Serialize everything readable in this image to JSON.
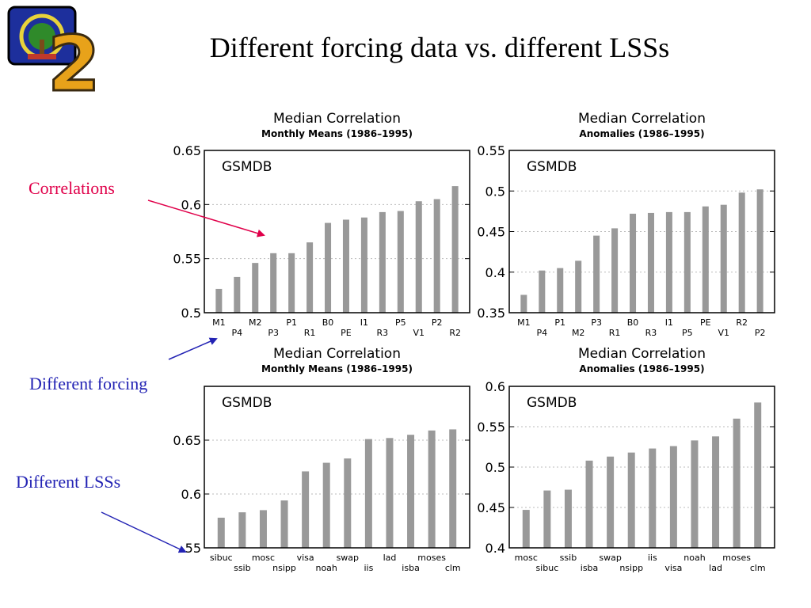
{
  "slide": {
    "title": "Different forcing data vs. different LSSs",
    "annotations": [
      {
        "key": "correlations",
        "text": "Correlations",
        "color": "#e0004a"
      },
      {
        "key": "forcing",
        "text": "Different forcing",
        "color": "#2323b4"
      },
      {
        "key": "lsss",
        "text": "Different LSSs",
        "color": "#2323b4"
      }
    ]
  },
  "logo": {
    "icon": "gswp2-logo-icon",
    "digit": "2"
  },
  "colors": {
    "bar": "#999999",
    "axis": "#000000",
    "grid": "#bbbbbb"
  },
  "chart_data": [
    {
      "type": "bar",
      "title": "Median Correlation",
      "subtitle": "Monthly Means (1986–1995)",
      "label": "GSMDB",
      "categories": [
        "M1",
        "P4",
        "M2",
        "P3",
        "P1",
        "R1",
        "B0",
        "PE",
        "I1",
        "R3",
        "P5",
        "V1",
        "P2",
        "R2"
      ],
      "values": [
        0.522,
        0.533,
        0.546,
        0.555,
        0.555,
        0.565,
        0.583,
        0.586,
        0.588,
        0.593,
        0.594,
        0.603,
        0.605,
        0.617
      ],
      "ylim": [
        0.5,
        0.65
      ],
      "yticks": [
        "0.5",
        "0.55",
        "0.6",
        "0.65"
      ],
      "grid": true
    },
    {
      "type": "bar",
      "title": "Median Correlation",
      "subtitle": "Anomalies (1986–1995)",
      "label": "GSMDB",
      "categories": [
        "M1",
        "P4",
        "P1",
        "M2",
        "P3",
        "R1",
        "B0",
        "R3",
        "I1",
        "P5",
        "PE",
        "V1",
        "R2",
        "P2"
      ],
      "values": [
        0.372,
        0.402,
        0.405,
        0.414,
        0.445,
        0.454,
        0.472,
        0.473,
        0.474,
        0.474,
        0.481,
        0.483,
        0.498,
        0.502
      ],
      "ylim": [
        0.35,
        0.55
      ],
      "yticks": [
        "0.35",
        "0.4",
        "0.45",
        "0.5",
        "0.55"
      ],
      "grid": true
    },
    {
      "type": "bar",
      "title": "Median Correlation",
      "subtitle": "Monthly Means (1986–1995)",
      "label": "GSMDB",
      "categories": [
        "sibuc",
        "ssib",
        "mosc",
        "nsipp",
        "visa",
        "noah",
        "swap",
        "iis",
        "lad",
        "isba",
        "moses",
        "clm"
      ],
      "values": [
        0.578,
        0.583,
        0.585,
        0.594,
        0.621,
        0.629,
        0.633,
        0.651,
        0.652,
        0.655,
        0.659,
        0.66
      ],
      "ylim": [
        0.55,
        0.7
      ],
      "yticks": [
        ".55",
        "0.6",
        "0.65"
      ],
      "grid": true
    },
    {
      "type": "bar",
      "title": "Median Correlation",
      "subtitle": "Anomalies (1986–1995)",
      "label": "GSMDB",
      "categories": [
        "mosc",
        "sibuc",
        "ssib",
        "isba",
        "swap",
        "nsipp",
        "iis",
        "visa",
        "noah",
        "lad",
        "moses",
        "clm"
      ],
      "values": [
        0.447,
        0.471,
        0.472,
        0.508,
        0.513,
        0.518,
        0.523,
        0.526,
        0.533,
        0.538,
        0.56,
        0.58
      ],
      "ylim": [
        0.4,
        0.6
      ],
      "yticks": [
        "0.4",
        "0.45",
        "0.5",
        "0.55",
        "0.6"
      ],
      "grid": true
    }
  ]
}
